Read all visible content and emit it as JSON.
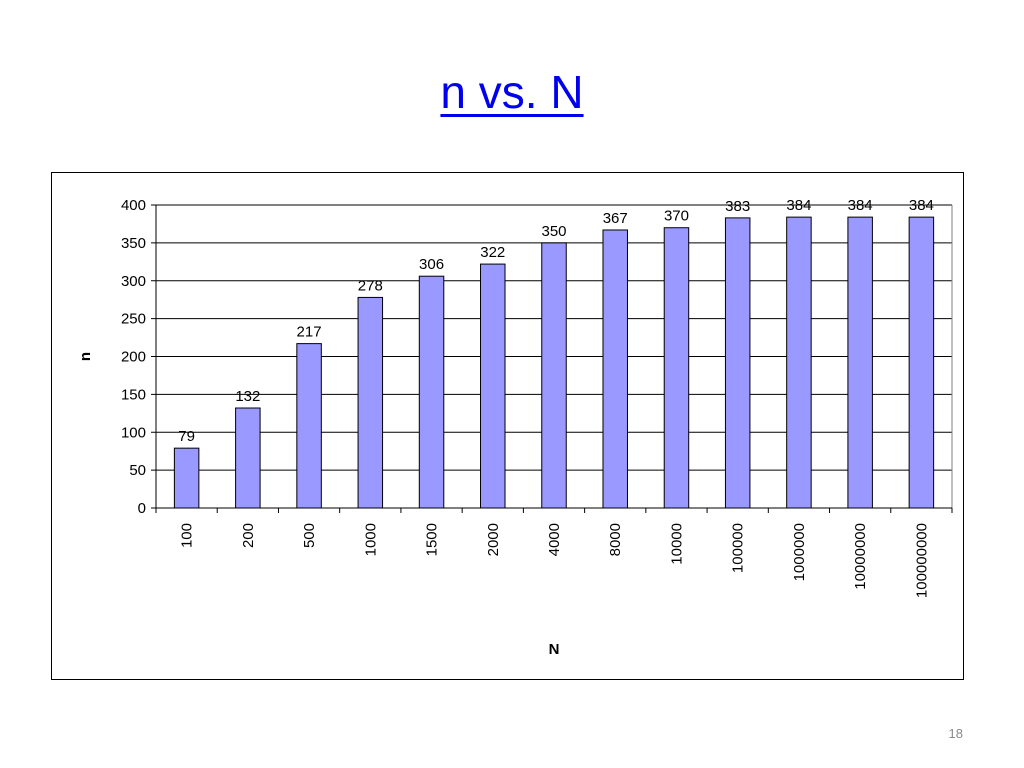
{
  "slide": {
    "title": "n vs. N",
    "page_number": "18"
  },
  "colors": {
    "bar_fill": "#9999ff",
    "bar_stroke": "#000000",
    "title": "#0000ee"
  },
  "chart_data": {
    "type": "bar",
    "title": "",
    "xlabel": "N",
    "ylabel": "n",
    "categories": [
      "100",
      "200",
      "500",
      "1000",
      "1500",
      "2000",
      "4000",
      "8000",
      "10000",
      "100000",
      "1000000",
      "10000000",
      "100000000"
    ],
    "series": [
      {
        "values": [
          79,
          132,
          217,
          278,
          306,
          322,
          350,
          367,
          370,
          383,
          384,
          384,
          384
        ]
      }
    ],
    "data_labels": [
      "79",
      "132",
      "217",
      "278",
      "306",
      "322",
      "350",
      "367",
      "370",
      "383",
      "384",
      "384",
      "384"
    ],
    "ylim": [
      0,
      400
    ],
    "yticks": [
      "0",
      "50",
      "100",
      "150",
      "200",
      "250",
      "300",
      "350",
      "400"
    ],
    "grid": true,
    "legend": "none"
  }
}
